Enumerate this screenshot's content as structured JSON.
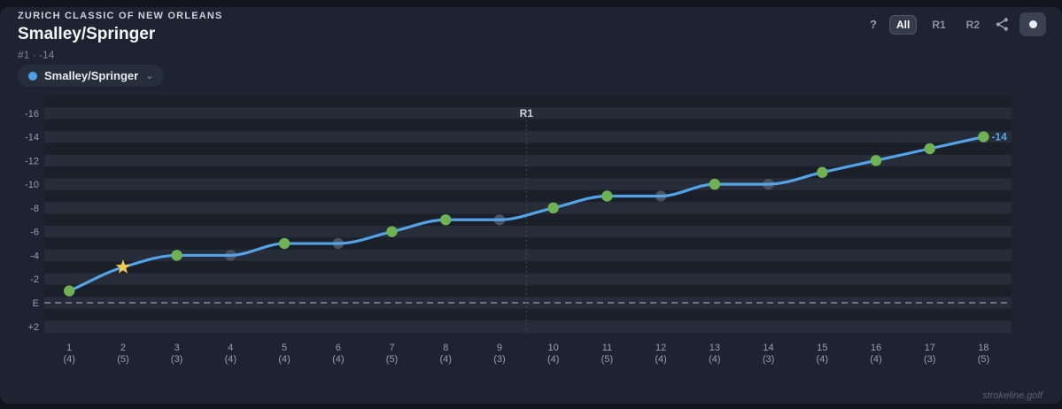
{
  "header": {
    "tournament": "ZURICH CLASSIC OF NEW ORLEANS",
    "team": "Smalley/Springer",
    "position_score": "#1 · -14"
  },
  "controls": {
    "help_label": "?",
    "round_filters": {
      "all": "All",
      "r1": "R1",
      "r2": "R2"
    },
    "selected_round": "All",
    "icons": {
      "share": "share-icon",
      "capture": "dot-icon"
    }
  },
  "legend": {
    "label": "Smalley/Springer",
    "dot_color": "#4da2e8",
    "chevron": "⌄"
  },
  "footer": {
    "brand": "strokeline.golf"
  },
  "chart_data": {
    "type": "line",
    "series_name": "Smalley/Springer",
    "holes": [
      1,
      2,
      3,
      4,
      5,
      6,
      7,
      8,
      9,
      10,
      11,
      12,
      13,
      14,
      15,
      16,
      17,
      18
    ],
    "pars": [
      4,
      5,
      3,
      4,
      4,
      4,
      5,
      4,
      3,
      4,
      5,
      4,
      4,
      3,
      4,
      4,
      3,
      5
    ],
    "cumulative_score": [
      -1,
      -3,
      -4,
      -4,
      -5,
      -5,
      -6,
      -7,
      -7,
      -8,
      -9,
      -9,
      -10,
      -10,
      -11,
      -12,
      -13,
      -14
    ],
    "result_types": [
      "birdie",
      "eagle",
      "birdie",
      "par",
      "birdie",
      "par",
      "birdie",
      "birdie",
      "par",
      "birdie",
      "birdie",
      "par",
      "birdie",
      "par",
      "birdie",
      "birdie",
      "birdie",
      "birdie"
    ],
    "y_ticks": [
      -16,
      -14,
      -12,
      -10,
      -8,
      -6,
      -4,
      -2,
      0,
      2
    ],
    "y_tick_labels": [
      "-16",
      "-14",
      "-12",
      "-10",
      "-8",
      "-6",
      "-4",
      "-2",
      "E",
      "+2"
    ],
    "ylim_top": -16.5,
    "ylim_bottom": 2.5,
    "grid": "striped-bands",
    "legend_position": "top-left-chip",
    "round_markers": [
      {
        "label": "R1",
        "after_hole": 9
      }
    ],
    "even_par_value": 0,
    "even_par_label": "E",
    "final_label": "-14",
    "colors": {
      "line": "#54a3e6",
      "birdie": "#6fb254",
      "par": "#4a515f",
      "eagle": "#f3c84e",
      "stripe_light": "#262c38",
      "stripe_dark": "#1a1f29",
      "final_label": "#57a7ea",
      "axis_text": "#98a0ae",
      "even_par_line": "#828b9a",
      "round_marker_line": "#464e5c",
      "round_marker_text": "#ced3dc"
    }
  }
}
